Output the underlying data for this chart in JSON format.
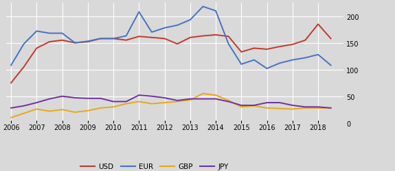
{
  "years": [
    2006,
    2006.5,
    2007,
    2007.5,
    2008,
    2008.5,
    2009,
    2009.5,
    2010,
    2010.5,
    2011,
    2011.5,
    2012,
    2012.5,
    2013,
    2013.5,
    2014,
    2014.5,
    2015,
    2015.5,
    2016,
    2016.5,
    2017,
    2017.5,
    2018,
    2018.5
  ],
  "USD": [
    75,
    105,
    140,
    152,
    155,
    150,
    152,
    158,
    158,
    155,
    162,
    160,
    158,
    148,
    160,
    163,
    165,
    162,
    133,
    140,
    138,
    143,
    147,
    155,
    185,
    158
  ],
  "EUR": [
    108,
    148,
    172,
    168,
    168,
    150,
    153,
    158,
    158,
    163,
    208,
    170,
    178,
    183,
    193,
    218,
    210,
    148,
    110,
    118,
    102,
    112,
    118,
    122,
    128,
    108
  ],
  "GBP": [
    10,
    18,
    26,
    22,
    25,
    20,
    23,
    28,
    30,
    36,
    40,
    36,
    38,
    40,
    43,
    55,
    52,
    42,
    30,
    32,
    28,
    27,
    26,
    28,
    28,
    28
  ],
  "JPY": [
    28,
    32,
    38,
    45,
    50,
    47,
    46,
    46,
    40,
    40,
    52,
    50,
    47,
    42,
    45,
    45,
    45,
    40,
    33,
    33,
    38,
    38,
    33,
    30,
    30,
    28
  ],
  "colors": {
    "USD": "#c0392b",
    "EUR": "#4472c4",
    "GBP": "#e6a817",
    "JPY": "#7030a0"
  },
  "ylim": [
    0,
    225
  ],
  "yticks": [
    0,
    50,
    100,
    150,
    200
  ],
  "xlim": [
    2005.8,
    2019.0
  ],
  "xticks": [
    2006,
    2007,
    2008,
    2009,
    2010,
    2011,
    2012,
    2013,
    2014,
    2015,
    2016,
    2017,
    2018
  ],
  "bg_color": "#d9d9d9",
  "grid_color": "#ffffff"
}
